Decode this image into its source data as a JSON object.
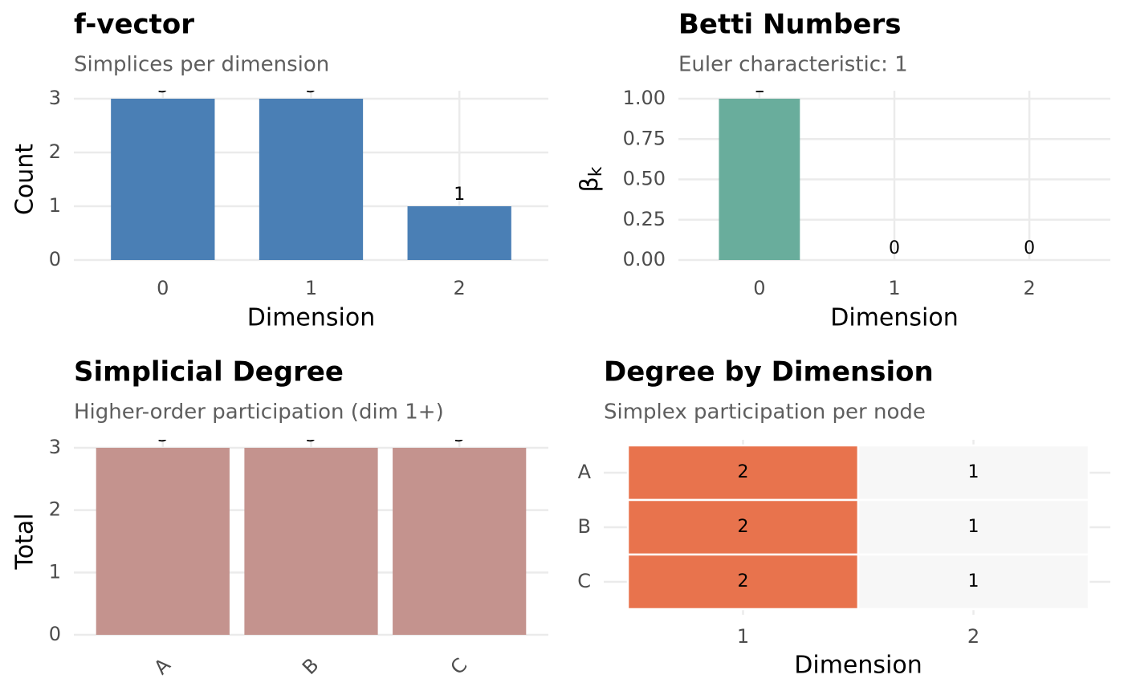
{
  "chart_data": [
    {
      "type": "bar",
      "title": "f-vector",
      "subtitle": "Simplices per dimension",
      "xlabel": "Dimension",
      "ylabel": "Count",
      "categories": [
        "0",
        "1",
        "2"
      ],
      "values": [
        3,
        3,
        1
      ],
      "color": "#4a7fb5",
      "ylim": [
        0,
        3
      ],
      "yticks": [
        0,
        1,
        2,
        3
      ],
      "grid": true
    },
    {
      "type": "bar",
      "title": "Betti Numbers",
      "subtitle": "Euler characteristic: 1",
      "xlabel": "Dimension",
      "ylabel": [
        "β",
        "k"
      ],
      "categories": [
        "0",
        "1",
        "2"
      ],
      "values": [
        1,
        0,
        0
      ],
      "color": "#69ad9c",
      "ylim": [
        0,
        1
      ],
      "yticks": [
        {
          "value": 0,
          "label": "0.00"
        },
        {
          "value": 0.25,
          "label": "0.25"
        },
        {
          "value": 0.5,
          "label": "0.50"
        },
        {
          "value": 0.75,
          "label": "0.75"
        },
        {
          "value": 1,
          "label": "1.00"
        }
      ],
      "grid": true
    },
    {
      "type": "bar",
      "title": "Simplicial Degree",
      "subtitle": "Higher-order participation (dim 1+)",
      "ylabel": "Total",
      "categories": [
        "A",
        "B",
        "C"
      ],
      "values": [
        3,
        3,
        3
      ],
      "color": "#c4938e",
      "ylim": [
        0,
        3
      ],
      "yticks": [
        0,
        1,
        2,
        3
      ],
      "grid": true,
      "x_tick_rotation": 45
    },
    {
      "type": "heatmap",
      "title": "Degree by Dimension",
      "subtitle": "Simplex participation per node",
      "xlabel": "Dimension",
      "categories": [
        "1",
        "2"
      ],
      "rows": [
        "A",
        "B",
        "C"
      ],
      "values": [
        [
          2,
          1
        ],
        [
          2,
          1
        ],
        [
          2,
          1
        ]
      ],
      "color_low": "#f7f7f7",
      "color_high": "#e8734d",
      "grid": true
    }
  ]
}
